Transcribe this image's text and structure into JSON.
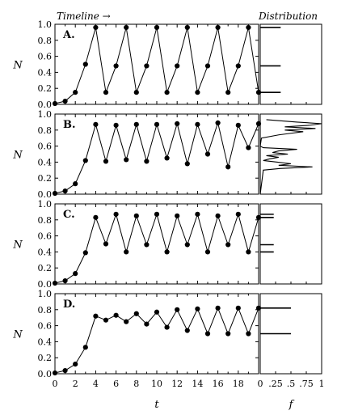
{
  "headers": {
    "left": "Timeline →",
    "right": "Distribution"
  },
  "chart_data": {
    "type": "line",
    "xlabel": "t",
    "ylabel": "N",
    "xlim": [
      0,
      20
    ],
    "ylim": [
      0,
      1.0
    ],
    "x_ticks": [
      "0",
      "2",
      "4",
      "6",
      "8",
      "10",
      "12",
      "14",
      "16",
      "18"
    ],
    "dist_xlabel": "f",
    "dist_xlim": [
      0,
      1
    ],
    "dist_ticks": [
      "0",
      ".25",
      ".5",
      ".75",
      "1"
    ],
    "panels": [
      {
        "label": "A.",
        "y_ticks": [
          "0.0",
          "0.2",
          "0.4",
          "0.6",
          "0.8",
          "1.0"
        ],
        "t": [
          0,
          1,
          2,
          3,
          4,
          5,
          6,
          7,
          8,
          9,
          10,
          11,
          12,
          13,
          14,
          15,
          16,
          17,
          18,
          19,
          20
        ],
        "N": [
          0.01,
          0.04,
          0.15,
          0.5,
          0.96,
          0.15,
          0.48,
          0.96,
          0.15,
          0.48,
          0.96,
          0.15,
          0.48,
          0.96,
          0.15,
          0.48,
          0.96,
          0.15,
          0.48,
          0.96,
          0.15
        ],
        "distribution": {
          "type": "bars",
          "bars": [
            {
              "N": 0.96,
              "f": 0.333
            },
            {
              "N": 0.48,
              "f": 0.333
            },
            {
              "N": 0.15,
              "f": 0.333
            }
          ]
        }
      },
      {
        "label": "B.",
        "y_ticks": [
          "0.0",
          "0.2",
          "0.4",
          "0.6",
          "0.8",
          "1.0"
        ],
        "t": [
          0,
          1,
          2,
          3,
          4,
          5,
          6,
          7,
          8,
          9,
          10,
          11,
          12,
          13,
          14,
          15,
          16,
          17,
          18,
          19,
          20
        ],
        "N": [
          0.01,
          0.04,
          0.13,
          0.42,
          0.87,
          0.41,
          0.86,
          0.43,
          0.87,
          0.41,
          0.87,
          0.45,
          0.88,
          0.38,
          0.87,
          0.5,
          0.89,
          0.34,
          0.86,
          0.58,
          0.88
        ],
        "distribution": {
          "type": "profile",
          "N": [
            0.0,
            0.3,
            0.32,
            0.34,
            0.36,
            0.38,
            0.4,
            0.42,
            0.44,
            0.46,
            0.48,
            0.5,
            0.52,
            0.54,
            0.56,
            0.58,
            0.6,
            0.7,
            0.74,
            0.76,
            0.78,
            0.8,
            0.82,
            0.84,
            0.86,
            0.88,
            0.9,
            0.93
          ],
          "f": [
            0.0,
            0.05,
            0.32,
            0.85,
            0.3,
            0.5,
            0.28,
            0.05,
            0.15,
            0.3,
            0.1,
            0.45,
            0.2,
            0.3,
            0.6,
            0.05,
            0.0,
            0.02,
            0.3,
            0.5,
            0.7,
            0.4,
            0.9,
            0.4,
            0.8,
            1.0,
            0.6,
            0.1
          ]
        }
      },
      {
        "label": "C.",
        "y_ticks": [
          "0.0",
          "0.2",
          "0.4",
          "0.6",
          "0.8",
          "1.0"
        ],
        "t": [
          0,
          1,
          2,
          3,
          4,
          5,
          6,
          7,
          8,
          9,
          10,
          11,
          12,
          13,
          14,
          15,
          16,
          17,
          18,
          19,
          20
        ],
        "N": [
          0.01,
          0.04,
          0.13,
          0.39,
          0.83,
          0.5,
          0.87,
          0.4,
          0.85,
          0.49,
          0.87,
          0.4,
          0.85,
          0.49,
          0.87,
          0.4,
          0.85,
          0.49,
          0.87,
          0.4,
          0.83
        ],
        "distribution": {
          "type": "bars",
          "bars": [
            {
              "N": 0.87,
              "f": 0.22
            },
            {
              "N": 0.83,
              "f": 0.22
            },
            {
              "N": 0.49,
              "f": 0.22
            },
            {
              "N": 0.4,
              "f": 0.22
            }
          ]
        }
      },
      {
        "label": "D.",
        "y_ticks": [
          "0.0",
          "0.2",
          "0.4",
          "0.6",
          "0.8",
          "1.0"
        ],
        "t": [
          0,
          1,
          2,
          3,
          4,
          5,
          6,
          7,
          8,
          9,
          10,
          11,
          12,
          13,
          14,
          15,
          16,
          17,
          18,
          19,
          20
        ],
        "N": [
          0.01,
          0.04,
          0.12,
          0.33,
          0.72,
          0.67,
          0.73,
          0.65,
          0.75,
          0.62,
          0.77,
          0.58,
          0.8,
          0.54,
          0.81,
          0.5,
          0.82,
          0.5,
          0.82,
          0.5,
          0.82
        ],
        "distribution": {
          "type": "bars",
          "bars": [
            {
              "N": 0.82,
              "f": 0.5
            },
            {
              "N": 0.5,
              "f": 0.5
            }
          ]
        }
      }
    ]
  }
}
